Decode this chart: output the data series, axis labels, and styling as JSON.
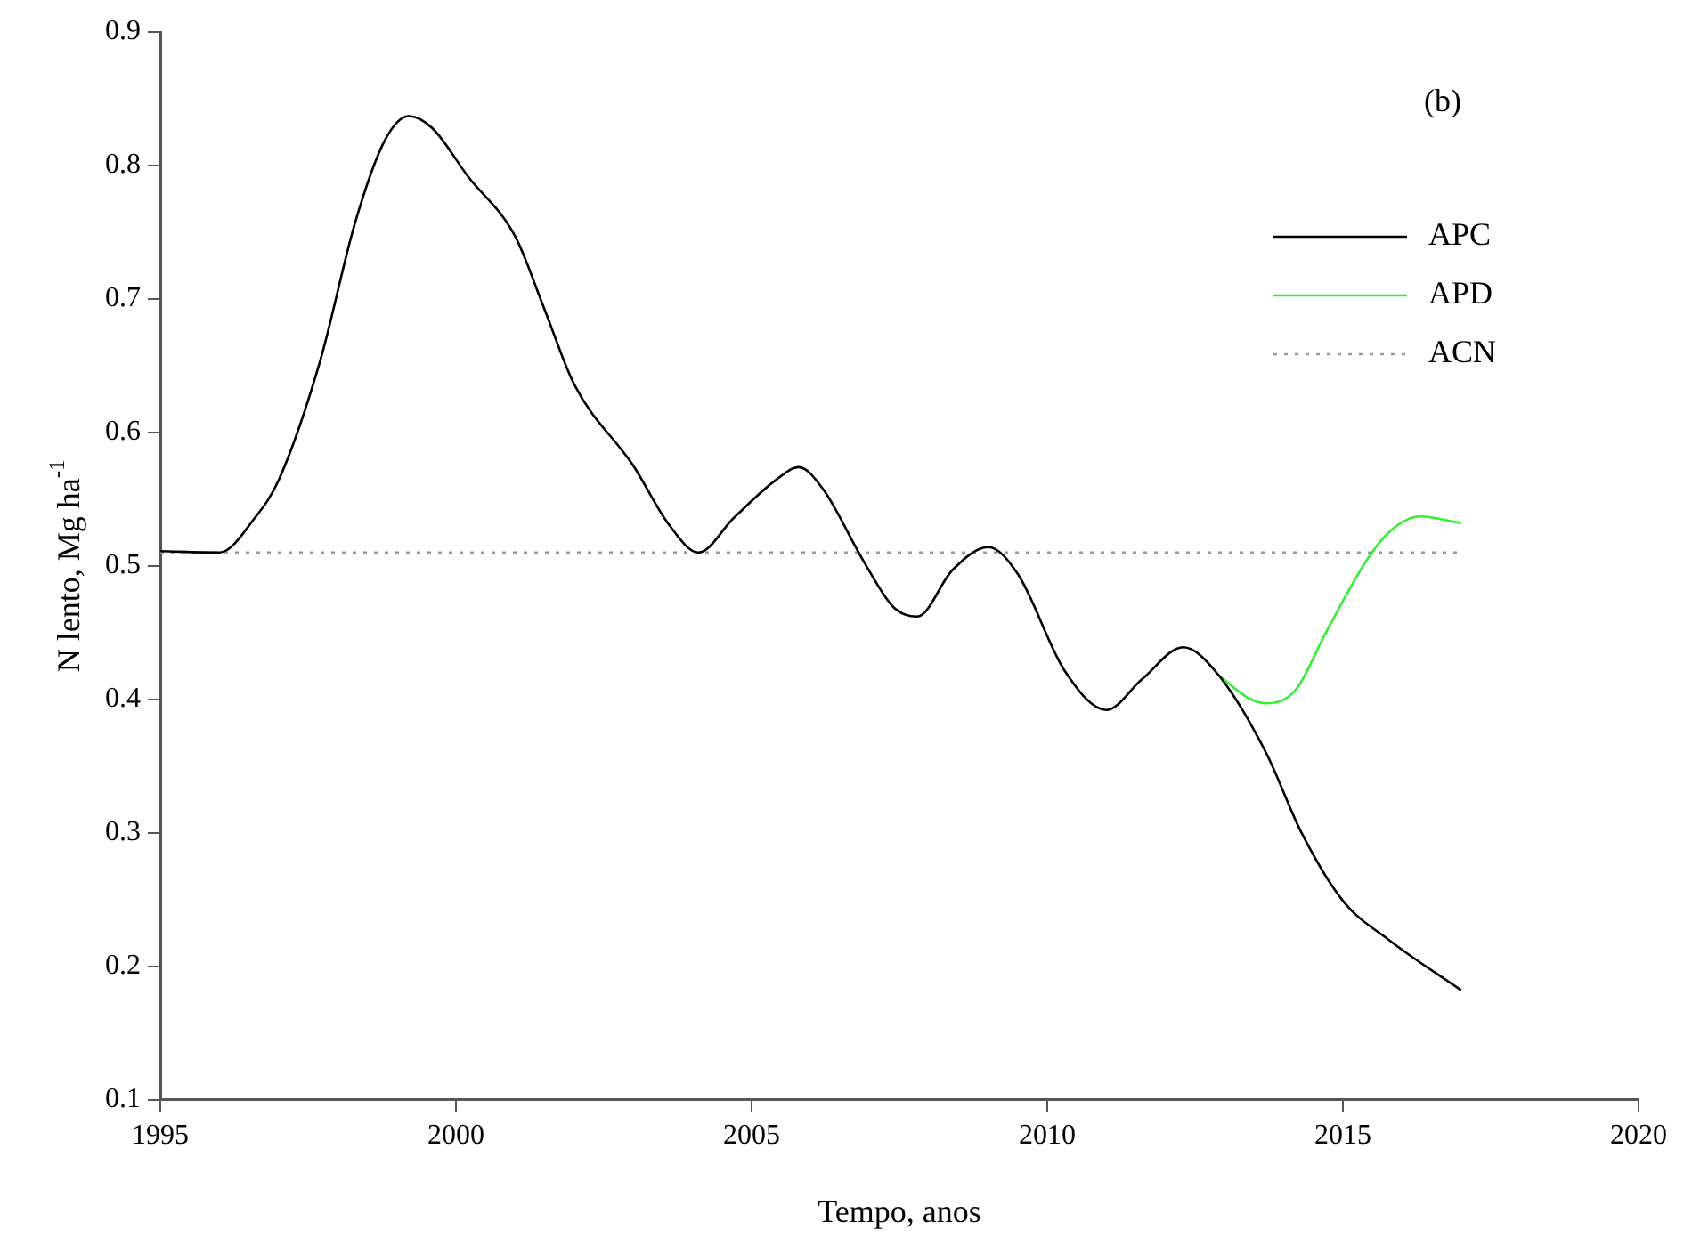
{
  "chart_data": {
    "type": "line",
    "xlabel": "Tempo, anos",
    "ylabel": "N lento, Mg ha$^{-1}$",
    "annotations": [
      "(b)"
    ],
    "xlim": [
      1995,
      2020
    ],
    "xticks": [
      1995,
      2000,
      2005,
      2010,
      2015,
      2020
    ],
    "ylim": [
      0.1,
      0.9
    ],
    "yticks": [
      0.1,
      0.2,
      0.3,
      0.4,
      0.5,
      0.6,
      0.7,
      0.8,
      0.9
    ],
    "grid": false,
    "legend": "top right",
    "marker": "none",
    "series": [
      {
        "name": "APC",
        "color": "#000000",
        "line_style": "solid",
        "x": [
          1995,
          1996,
          1996.6,
          1997,
          1997.7,
          1998.3,
          1998.8,
          1999.2,
          1999.6,
          2000.2,
          2001,
          2001.5,
          2002,
          2003,
          2003.6,
          2004.1,
          2004.7,
          2005.4,
          2005.8,
          2006.2,
          2006.9,
          2007.4,
          2007.8,
          2008.4,
          2009,
          2009.5,
          2010.3,
          2011,
          2011.6,
          2012.3,
          2012.9,
          2013.7,
          2014.3,
          2015,
          2015.8,
          2017
        ],
        "values": [
          0.511,
          0.51,
          0.536,
          0.564,
          0.653,
          0.758,
          0.819,
          0.837,
          0.828,
          0.792,
          0.747,
          0.692,
          0.636,
          0.575,
          0.531,
          0.51,
          0.536,
          0.564,
          0.574,
          0.558,
          0.503,
          0.469,
          0.462,
          0.497,
          0.514,
          0.494,
          0.421,
          0.392,
          0.415,
          0.439,
          0.418,
          0.36,
          0.3,
          0.249,
          0.219,
          0.182
        ]
      },
      {
        "name": "APD",
        "color": "#33ee33",
        "line_style": "solid",
        "x": [
          2012.9,
          2013.4,
          2013.7,
          2014.2,
          2014.7,
          2015.4,
          2015.8,
          2016.3,
          2017
        ],
        "values": [
          0.418,
          0.401,
          0.397,
          0.407,
          0.449,
          0.504,
          0.526,
          0.537,
          0.532
        ]
      },
      {
        "name": "ACN",
        "color": "#999999",
        "line_style": "dotted",
        "x": [
          1995,
          2017
        ],
        "values": [
          0.51,
          0.51
        ]
      }
    ]
  }
}
